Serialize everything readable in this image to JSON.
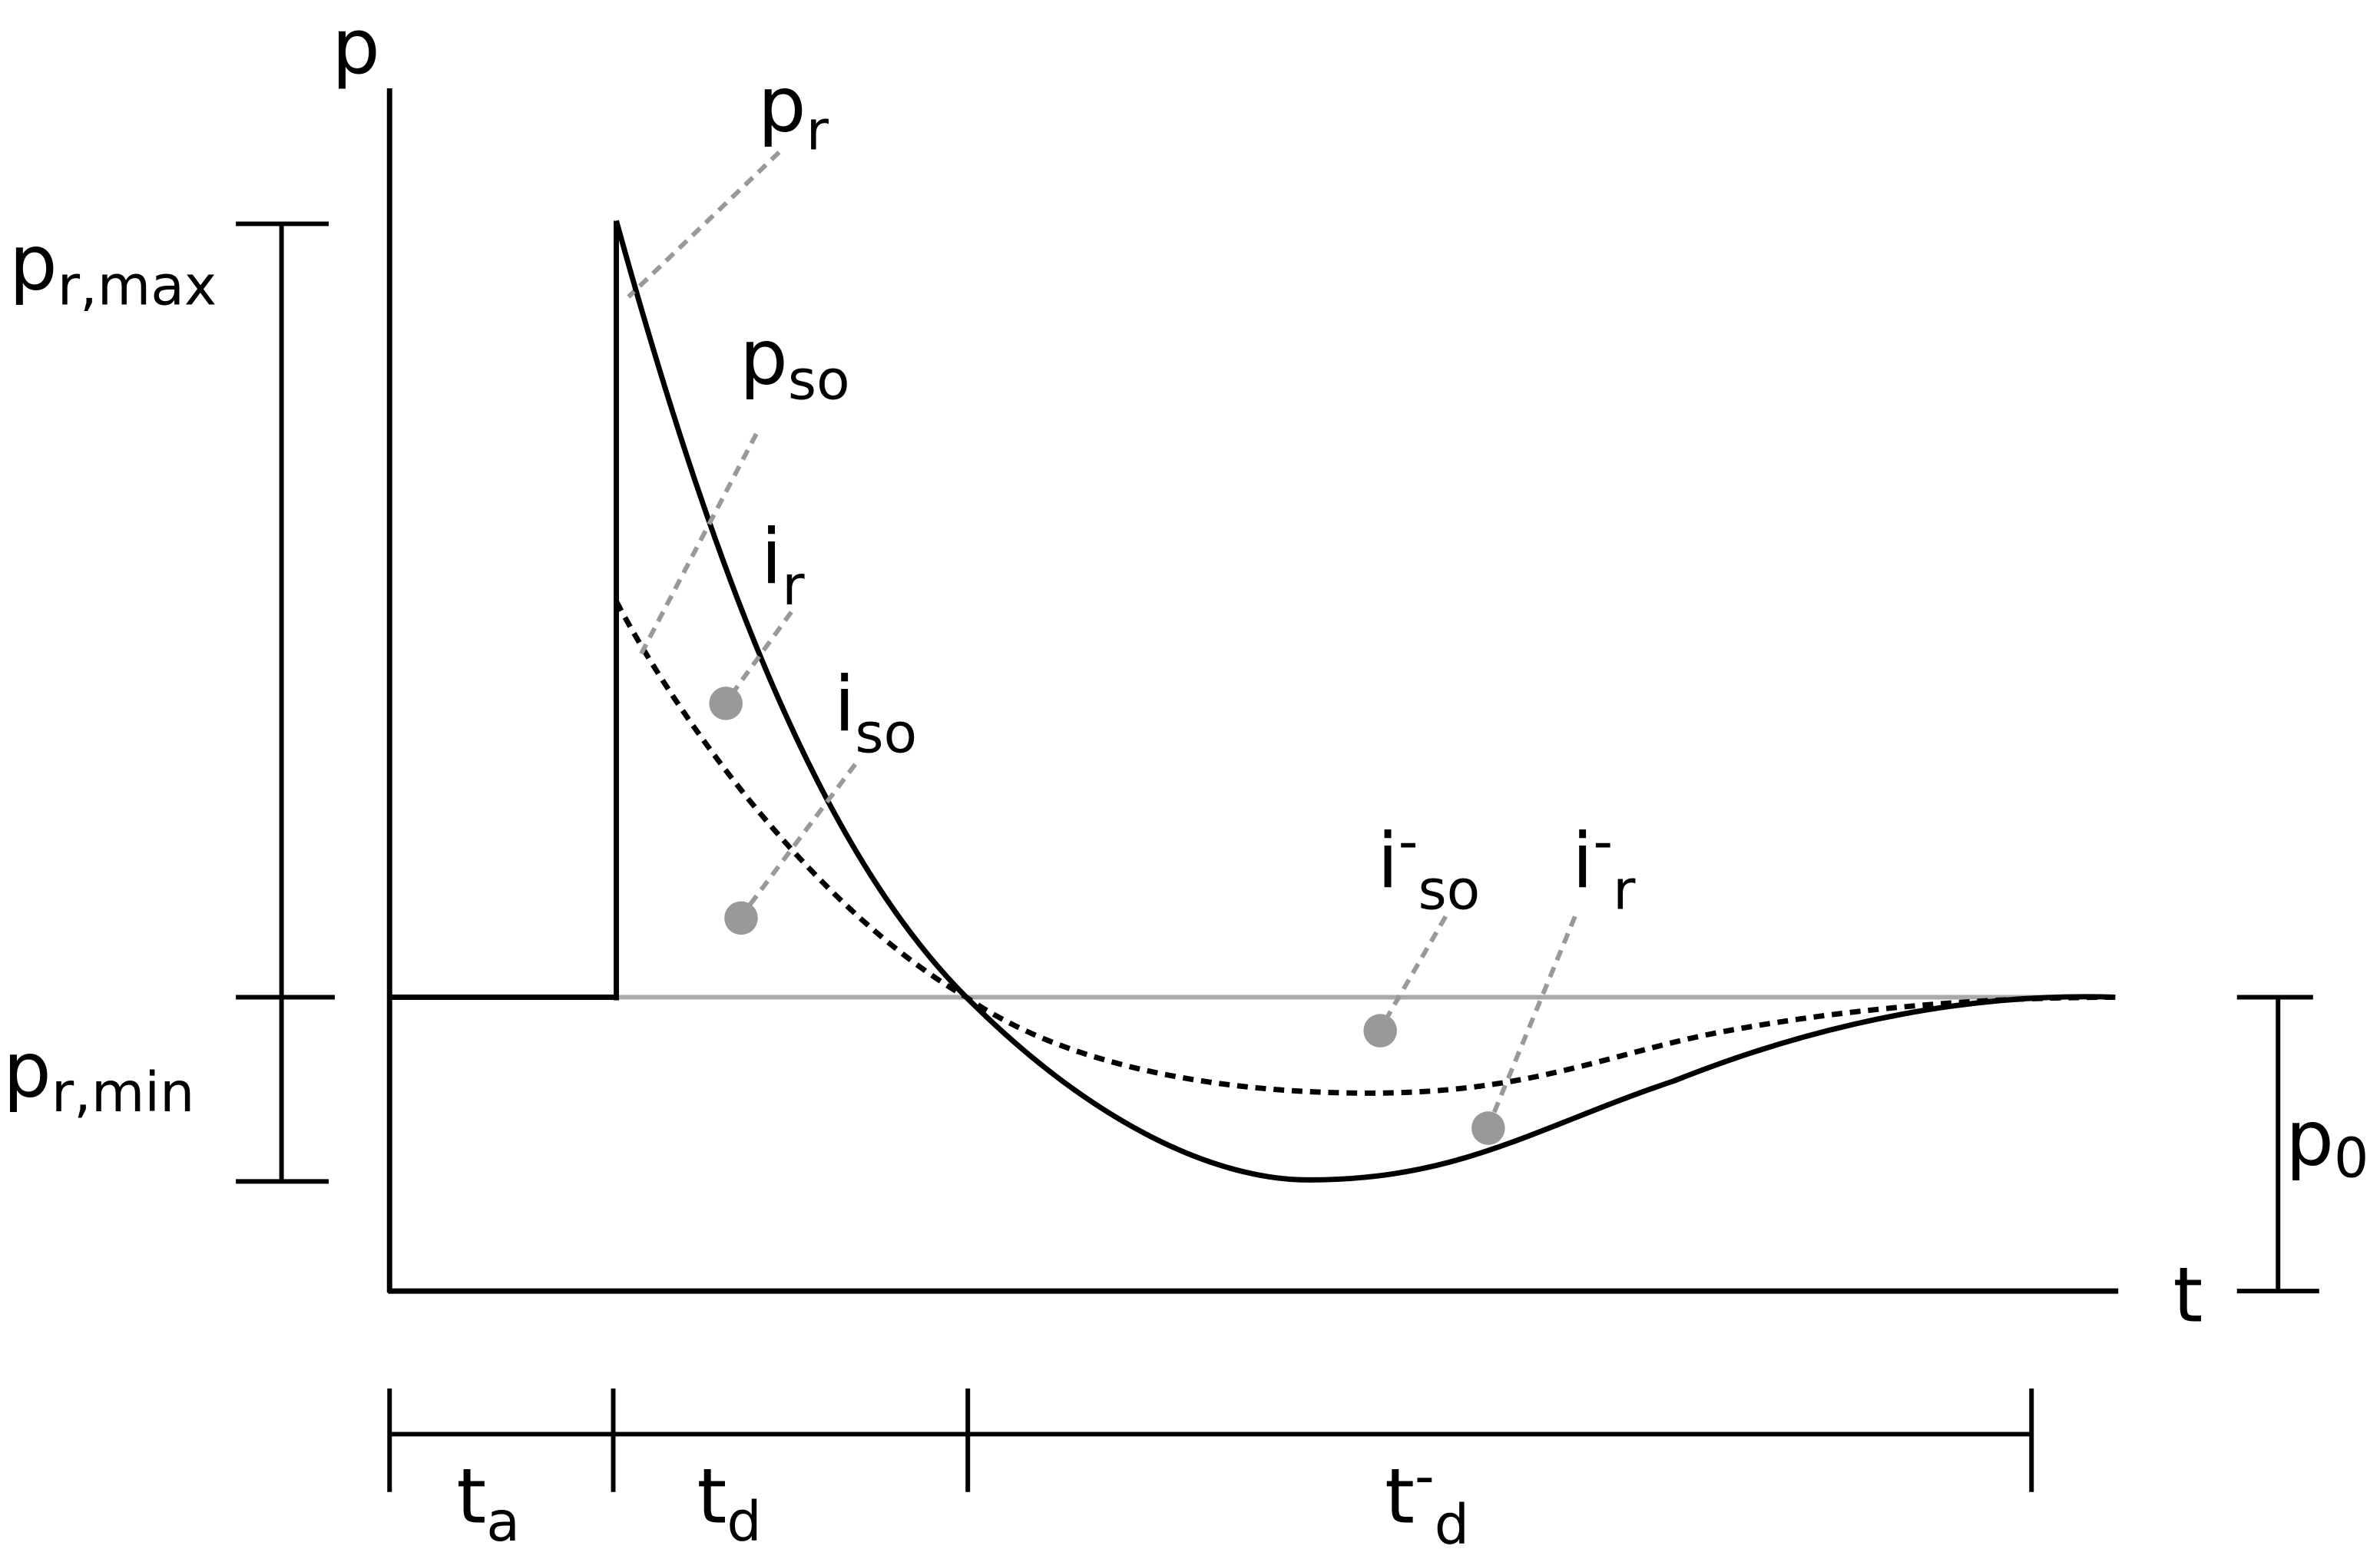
{
  "axes": {
    "y": "p",
    "x": "t"
  },
  "labels": [
    {
      "base": "p",
      "sub": "r"
    },
    {
      "base": "p",
      "sub": "so"
    },
    {
      "base": "i",
      "sub": "r"
    },
    {
      "base": "i",
      "sub": "so"
    },
    {
      "base": "i",
      "sup": "-",
      "sub": "so"
    },
    {
      "base": "i",
      "sup": "-",
      "sub": "r"
    }
  ],
  "ranges": [
    {
      "base": "p",
      "sub": "r,max"
    },
    {
      "base": "p",
      "sub": "r,min"
    },
    {
      "base": "p",
      "sub": "0"
    }
  ],
  "intervals": [
    {
      "base": "t",
      "sub": "a"
    },
    {
      "base": "t",
      "sub": "d"
    },
    {
      "base": "t",
      "sup": "-",
      "sub": "d"
    }
  ]
}
